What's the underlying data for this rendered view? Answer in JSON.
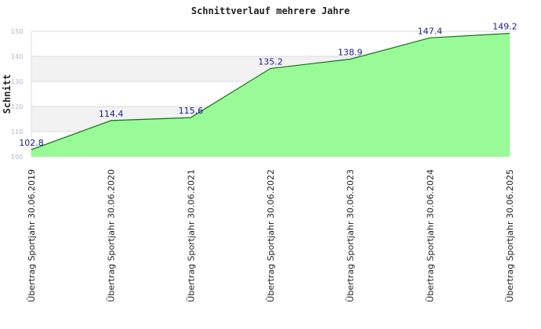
{
  "chart_data": {
    "type": "area",
    "title": "Schnittverlauf mehrere Jahre",
    "xlabel": "",
    "ylabel": "Schnitt",
    "categories": [
      "Übertrag Sportjahr 30.06.2019",
      "Übertrag Sportjahr 30.06.2020",
      "Übertrag Sportjahr 30.06.2021",
      "Übertrag Sportjahr 30.06.2022",
      "Übertrag Sportjahr 30.06.2023",
      "Übertrag Sportjahr 30.06.2024",
      "Übertrag Sportjahr 30.06.2025"
    ],
    "values": [
      102.8,
      114.4,
      115.6,
      135.2,
      138.9,
      147.4,
      149.2
    ],
    "data_labels": [
      "102.8",
      "114.4",
      "115.6",
      "135.2",
      "138.9",
      "147.4",
      "149.2"
    ],
    "ylim": [
      100,
      150
    ],
    "yticks": [
      100,
      110,
      120,
      130,
      140,
      150
    ],
    "grid": true,
    "colors": {
      "fill": "#98fb98",
      "line": "#1e6b1e",
      "label": "#1a1a8c",
      "band": "#f2f2f2",
      "grid": "#dcdcdc"
    }
  }
}
